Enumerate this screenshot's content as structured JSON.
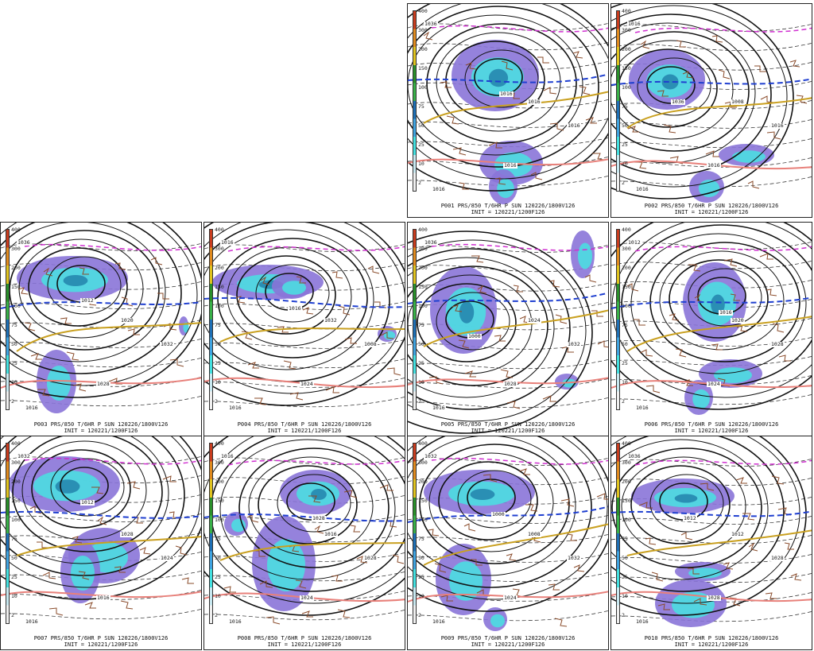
{
  "colorbar": {
    "labels": [
      "400",
      "300",
      "200",
      "150",
      "100",
      "75",
      "50",
      "25",
      "10",
      "2"
    ],
    "colors": [
      "#c83c1e",
      "#e08a1e",
      "#e0c31e",
      "#2a8f2a",
      "#38b048",
      "#1e6fb4",
      "#3fa3e0",
      "#43e0e0",
      "#c8e8f0",
      "#f0f0f0"
    ]
  },
  "panels": [
    {
      "id": "P001",
      "caption1": "P001 PRS/850 T/6HR P SUN 120226/1800V126",
      "caption2": "INIT = 120221/1200F126",
      "isobars": [
        "1036",
        "1016",
        "1016",
        "1016",
        "1016",
        "1016"
      ]
    },
    {
      "id": "P002",
      "caption1": "P002 PRS/850 T/6HR P SUN 120226/1800V126",
      "caption2": "INIT = 120221/1200F126",
      "isobars": [
        "1016",
        "1036",
        "1008",
        "1016",
        "1016",
        "1016"
      ]
    },
    {
      "id": "P003",
      "caption1": "P003 PRS/850 T/6HR P SUN 120226/1800V126",
      "caption2": "INIT = 120221/1200F126",
      "isobars": [
        "1036",
        "1012",
        "1020",
        "1032",
        "1028",
        "1016"
      ]
    },
    {
      "id": "P004",
      "caption1": "P004 PRS/850 T/6HR P SUN 120226/1800V126",
      "caption2": "INIT = 120221/1200F126",
      "isobars": [
        "1016",
        "1016",
        "1032",
        "1008",
        "1024",
        "1016"
      ]
    },
    {
      "id": "P005",
      "caption1": "P005 PRS/850 T/6HR P SUN 120226/1800V126",
      "caption2": "INIT = 120221/1200F126",
      "isobars": [
        "1036",
        "1000",
        "1024",
        "1032",
        "1028",
        "1016"
      ]
    },
    {
      "id": "P006",
      "caption1": "P006 PRS/850 T/6HR P SUN 120226/1800V126",
      "caption2": "INIT = 120221/1200F126",
      "isobars": [
        "1012",
        "1016",
        "1020",
        "1028",
        "1024",
        "1016"
      ]
    },
    {
      "id": "P007",
      "caption1": "P007 PRS/850 T/6HR P SUN 120226/1800V126",
      "caption2": "INIT = 120221/1200F126",
      "isobars": [
        "1032",
        "1012",
        "1028",
        "1024",
        "1016",
        "1016"
      ]
    },
    {
      "id": "P008",
      "caption1": "P008 PRS/850 T/6HR P SUN 120226/1800V126",
      "caption2": "INIT = 120221/1200F126",
      "isobars": [
        "1016",
        "1028",
        "1016",
        "1028",
        "1024",
        "1016"
      ]
    },
    {
      "id": "P009",
      "caption1": "P009 PRS/850 T/6HR P SUN 120226/1800V126",
      "caption2": "INIT = 120221/1200F126",
      "isobars": [
        "1032",
        "1000",
        "1008",
        "1032",
        "1024",
        "1016"
      ]
    },
    {
      "id": "P010",
      "caption1": "P010 PRS/850 T/6HR P SUN 120226/1800V126",
      "caption2": "INIT = 120221/1200F126",
      "isobars": [
        "1036",
        "1012",
        "1012",
        "1028",
        "1028",
        "1016"
      ]
    }
  ]
}
